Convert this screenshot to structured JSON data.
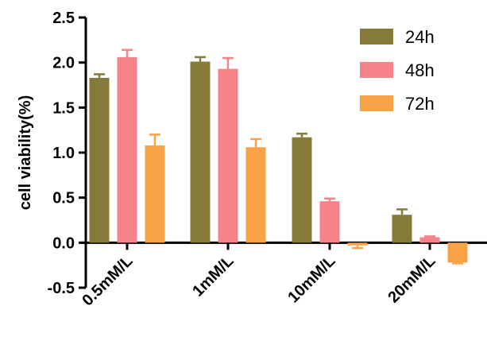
{
  "chart_data": {
    "type": "bar",
    "title": "",
    "xlabel": "",
    "ylabel": "cell viability(%)",
    "ylim": [
      -0.5,
      2.5
    ],
    "yticks": [
      "-0.5",
      "0.0",
      "0.5",
      "1.0",
      "1.5",
      "2.0",
      "2.5"
    ],
    "categories": [
      "0.5mM/L",
      "1mM/L",
      "10mM/L",
      "20mM/L"
    ],
    "grid": false,
    "legend_position": "top-right",
    "series": [
      {
        "name": "24h",
        "color": "#867a3a",
        "values": [
          1.83,
          2.01,
          1.17,
          0.31
        ],
        "errors": [
          0.04,
          0.05,
          0.04,
          0.06
        ]
      },
      {
        "name": "48h",
        "color": "#f7838a",
        "values": [
          2.06,
          1.93,
          0.46,
          0.06
        ],
        "errors": [
          0.08,
          0.12,
          0.03,
          0.01
        ]
      },
      {
        "name": "72h",
        "color": "#f9a346",
        "values": [
          1.08,
          1.06,
          -0.03,
          -0.22
        ],
        "errors": [
          0.12,
          0.09,
          0.03,
          0.01
        ]
      }
    ]
  }
}
